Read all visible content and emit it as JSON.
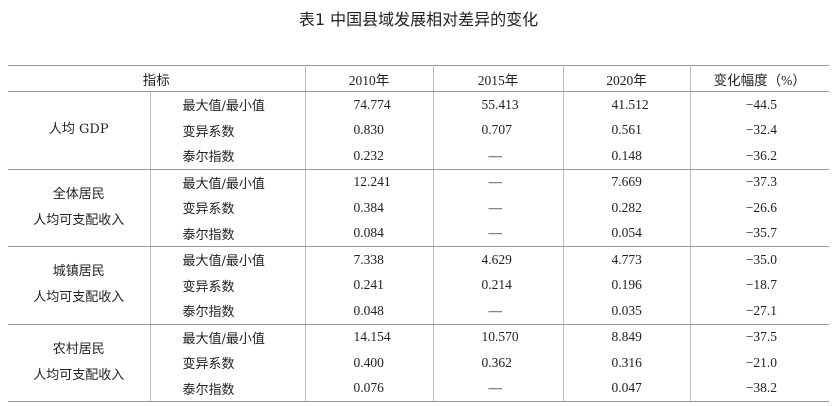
{
  "title": "表1 中国县域发展相对差异的变化",
  "table": {
    "header": [
      "指标",
      "2010年",
      "2015年",
      "2020年",
      "变化幅度（%）"
    ],
    "groups": [
      {
        "label": [
          "人均 GDP"
        ],
        "rows": [
          {
            "metric": "最大值/最小值",
            "values": [
              "74.774",
              "55.413",
              "41.512"
            ],
            "change": "−44.5"
          },
          {
            "metric": "变异系数",
            "values": [
              "0.830",
              "0.707",
              "0.561"
            ],
            "change": "−32.4"
          },
          {
            "metric": "泰尔指数",
            "values": [
              "0.232",
              "—",
              "0.148"
            ],
            "change": "−36.2"
          }
        ]
      },
      {
        "label": [
          "全体居民",
          "人均可支配收入"
        ],
        "rows": [
          {
            "metric": "最大值/最小值",
            "values": [
              "12.241",
              "—",
              "7.669"
            ],
            "change": "−37.3"
          },
          {
            "metric": "变异系数",
            "values": [
              "0.384",
              "—",
              "0.282"
            ],
            "change": "−26.6"
          },
          {
            "metric": "泰尔指数",
            "values": [
              "0.084",
              "—",
              "0.054"
            ],
            "change": "−35.7"
          }
        ]
      },
      {
        "label": [
          "城镇居民",
          "人均可支配收入"
        ],
        "rows": [
          {
            "metric": "最大值/最小值",
            "values": [
              "7.338",
              "4.629",
              "4.773"
            ],
            "change": "−35.0"
          },
          {
            "metric": "变异系数",
            "values": [
              "0.241",
              "0.214",
              "0.196"
            ],
            "change": "−18.7"
          },
          {
            "metric": "泰尔指数",
            "values": [
              "0.048",
              "—",
              "0.035"
            ],
            "change": "−27.1"
          }
        ]
      },
      {
        "label": [
          "农村居民",
          "人均可支配收入"
        ],
        "rows": [
          {
            "metric": "最大值/最小值",
            "values": [
              "14.154",
              "10.570",
              "8.849"
            ],
            "change": "−37.5"
          },
          {
            "metric": "变异系数",
            "values": [
              "0.400",
              "0.362",
              "0.316"
            ],
            "change": "−21.0"
          },
          {
            "metric": "泰尔指数",
            "values": [
              "0.076",
              "—",
              "0.047"
            ],
            "change": "−38.2"
          }
        ]
      }
    ]
  }
}
